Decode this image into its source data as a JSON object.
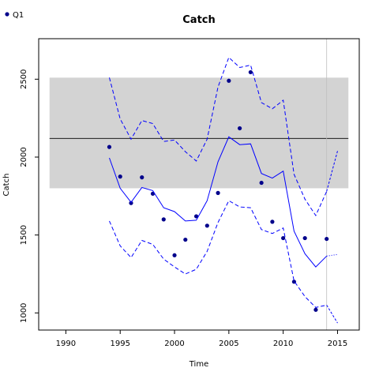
{
  "chart_data": {
    "type": "line",
    "title": "Catch",
    "xlabel": "Time",
    "ylabel": "Catch",
    "xlim": [
      1987.5,
      2017
    ],
    "ylim": [
      890,
      2760
    ],
    "xticks": [
      1990,
      1995,
      2000,
      2005,
      2010,
      2015
    ],
    "yticks": [
      1000,
      1500,
      2000,
      2500
    ],
    "legend": {
      "position": "top-left",
      "entries": [
        "Q1"
      ]
    },
    "reference_band": {
      "x": [
        1988.5,
        2016
      ],
      "y": [
        1800,
        2510
      ],
      "color": "#d3d3d3"
    },
    "reference_line": {
      "y": 2120,
      "x": [
        1988.5,
        2016
      ],
      "color": "#000000"
    },
    "vertical_line": {
      "x": 2014,
      "color": "#bebebe"
    },
    "series": [
      {
        "name": "Q1",
        "style": "points",
        "color": "#00008b",
        "x": [
          1994,
          1995,
          1996,
          1997,
          1998,
          1999,
          2000,
          2001,
          2002,
          2003,
          2004,
          2005,
          2006,
          2007,
          2008,
          2009,
          2010,
          2011,
          2012,
          2013,
          2014
        ],
        "y": [
          2065,
          1875,
          1705,
          1870,
          1765,
          1600,
          1370,
          1470,
          1620,
          1560,
          1770,
          2490,
          2185,
          2545,
          1835,
          1585,
          1480,
          1200,
          1480,
          1020,
          1475
        ]
      },
      {
        "style": "solid",
        "color": "#0000ff",
        "x": [
          1994,
          1995,
          1996,
          1997,
          1998,
          1999,
          2000,
          2001,
          2002,
          2003,
          2004,
          2005,
          2006,
          2007,
          2008,
          2009,
          2010,
          2011,
          2012,
          2013,
          2014
        ],
        "y": [
          1995,
          1800,
          1710,
          1805,
          1785,
          1675,
          1650,
          1590,
          1595,
          1720,
          1970,
          2130,
          2080,
          2085,
          1895,
          1865,
          1910,
          1525,
          1380,
          1295,
          1365
        ]
      },
      {
        "style": "dashed",
        "color": "#0000ff",
        "x": [
          1994,
          1995,
          1996,
          1997,
          1998,
          1999,
          2000,
          2001,
          2002,
          2003,
          2004,
          2005,
          2006,
          2007,
          2008,
          2009,
          2010,
          2011,
          2012,
          2013,
          2014
        ],
        "y": [
          2510,
          2245,
          2115,
          2235,
          2215,
          2100,
          2110,
          2035,
          1975,
          2115,
          2450,
          2640,
          2575,
          2590,
          2350,
          2310,
          2365,
          1890,
          1730,
          1625,
          1780
        ]
      },
      {
        "style": "dashed",
        "color": "#0000ff",
        "x": [
          1994,
          1995,
          1996,
          1997,
          1998,
          1999,
          2000,
          2001,
          2002,
          2003,
          2004,
          2005,
          2006,
          2007,
          2008,
          2009,
          2010,
          2011,
          2012,
          2013,
          2014
        ],
        "y": [
          1590,
          1430,
          1355,
          1465,
          1440,
          1345,
          1295,
          1250,
          1280,
          1395,
          1580,
          1720,
          1680,
          1675,
          1535,
          1510,
          1545,
          1205,
          1105,
          1035,
          1050
        ]
      },
      {
        "style": "dotted",
        "color": "#0000ff",
        "x": [
          2014,
          2015
        ],
        "y": [
          1365,
          1375
        ]
      },
      {
        "style": "dashed-fine",
        "color": "#0000ff",
        "x": [
          2014,
          2015
        ],
        "y": [
          1780,
          2040
        ]
      },
      {
        "style": "dashed-fine",
        "color": "#0000ff",
        "x": [
          2014,
          2015
        ],
        "y": [
          1050,
          935
        ]
      }
    ]
  }
}
